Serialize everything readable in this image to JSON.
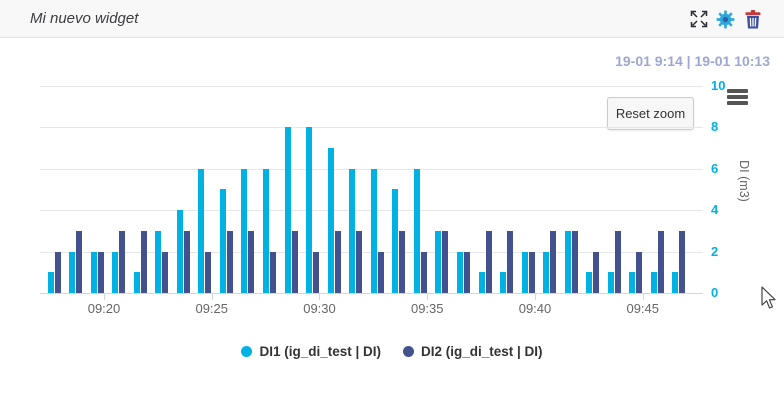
{
  "header": {
    "title": "Mi nuevo widget",
    "icons": [
      {
        "name": "expand-icon"
      },
      {
        "name": "settings-icon",
        "color": "#2aa9de"
      },
      {
        "name": "delete-icon",
        "body_color": "#3d4f9e",
        "lid_color": "#bf3a3a"
      }
    ]
  },
  "toolbar": {
    "time_range": "19-01 9:14 | 19-01 10:13",
    "reset_zoom_label": "Reset zoom",
    "menu_icon": "hamburger-icon"
  },
  "colors": {
    "di1": "#00b2e3",
    "di2": "#44518f",
    "time_range_text": "#9ea7cf",
    "y_tick_label": "#00b2e3",
    "x_tick_label": "#666666",
    "grid": "#e7e7e7",
    "axis_line": "#ccd6eb"
  },
  "chart_data": {
    "type": "bar",
    "title": "",
    "xlabel": "",
    "ylabel": "DI (m3)",
    "ylim": [
      0,
      10
    ],
    "y_ticks": [
      0,
      2,
      4,
      6,
      8,
      10
    ],
    "x_tick_labels": [
      "09:20",
      "09:25",
      "09:30",
      "09:35",
      "09:40",
      "09:45"
    ],
    "grid": true,
    "legend_position": "bottom",
    "categories": [
      "09:18",
      "09:19",
      "09:20",
      "09:21",
      "09:22",
      "09:23",
      "09:24",
      "09:25",
      "09:26",
      "09:27",
      "09:28",
      "09:29",
      "09:30",
      "09:31",
      "09:32",
      "09:33",
      "09:34",
      "09:35",
      "09:36",
      "09:37",
      "09:38",
      "09:39",
      "09:40",
      "09:41",
      "09:42",
      "09:43",
      "09:44",
      "09:45",
      "09:46",
      "09:47"
    ],
    "series": [
      {
        "name": "DI1 (ig_di_test | DI)",
        "color": "#00b2e3",
        "values": [
          1,
          2,
          2,
          2,
          1,
          3,
          4,
          6,
          5,
          6,
          6,
          8,
          8,
          7,
          6,
          6,
          5,
          6,
          3,
          2,
          1,
          1,
          2,
          2,
          3,
          1,
          1,
          1,
          1,
          1
        ]
      },
      {
        "name": "DI2 (ig_di_test | DI)",
        "color": "#44518f",
        "values": [
          2,
          3,
          2,
          3,
          3,
          2,
          3,
          2,
          3,
          3,
          2,
          3,
          2,
          3,
          3,
          2,
          3,
          2,
          3,
          2,
          3,
          3,
          2,
          3,
          3,
          2,
          3,
          2,
          3,
          3
        ]
      }
    ]
  }
}
